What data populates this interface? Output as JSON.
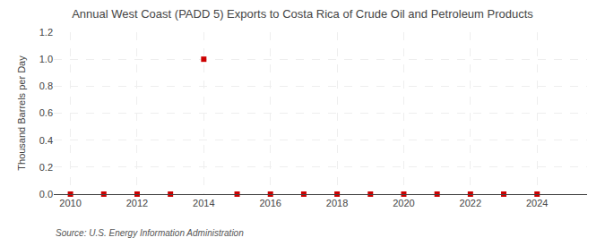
{
  "chart_data": {
    "type": "scatter",
    "title": "Annual West Coast (PADD 5) Exports to Costa Rica of Crude Oil and Petroleum Products",
    "ylabel": "Thousand Barrels per Day",
    "source": "Source: U.S. Energy Information Administration",
    "x": [
      2010,
      2011,
      2012,
      2013,
      2014,
      2015,
      2016,
      2017,
      2018,
      2019,
      2020,
      2021,
      2022,
      2023,
      2024
    ],
    "values": [
      0.0,
      0.0,
      0.0,
      0.0,
      1.0,
      0.0,
      0.0,
      0.0,
      0.0,
      0.0,
      0.0,
      0.0,
      0.0,
      0.0,
      0.0
    ],
    "color": "#cc0000",
    "marker": "square",
    "xlim": [
      2009.5,
      2025.5
    ],
    "xticks": [
      2010,
      2012,
      2014,
      2016,
      2018,
      2020,
      2022,
      2024
    ],
    "ylim": [
      0.0,
      1.2
    ],
    "yticks": [
      {
        "value": 0.0,
        "label": "0.0"
      },
      0.2,
      0.4,
      0.6,
      0.8,
      {
        "value": 1.0,
        "label": "1.0"
      },
      1.2
    ],
    "grid": true
  }
}
